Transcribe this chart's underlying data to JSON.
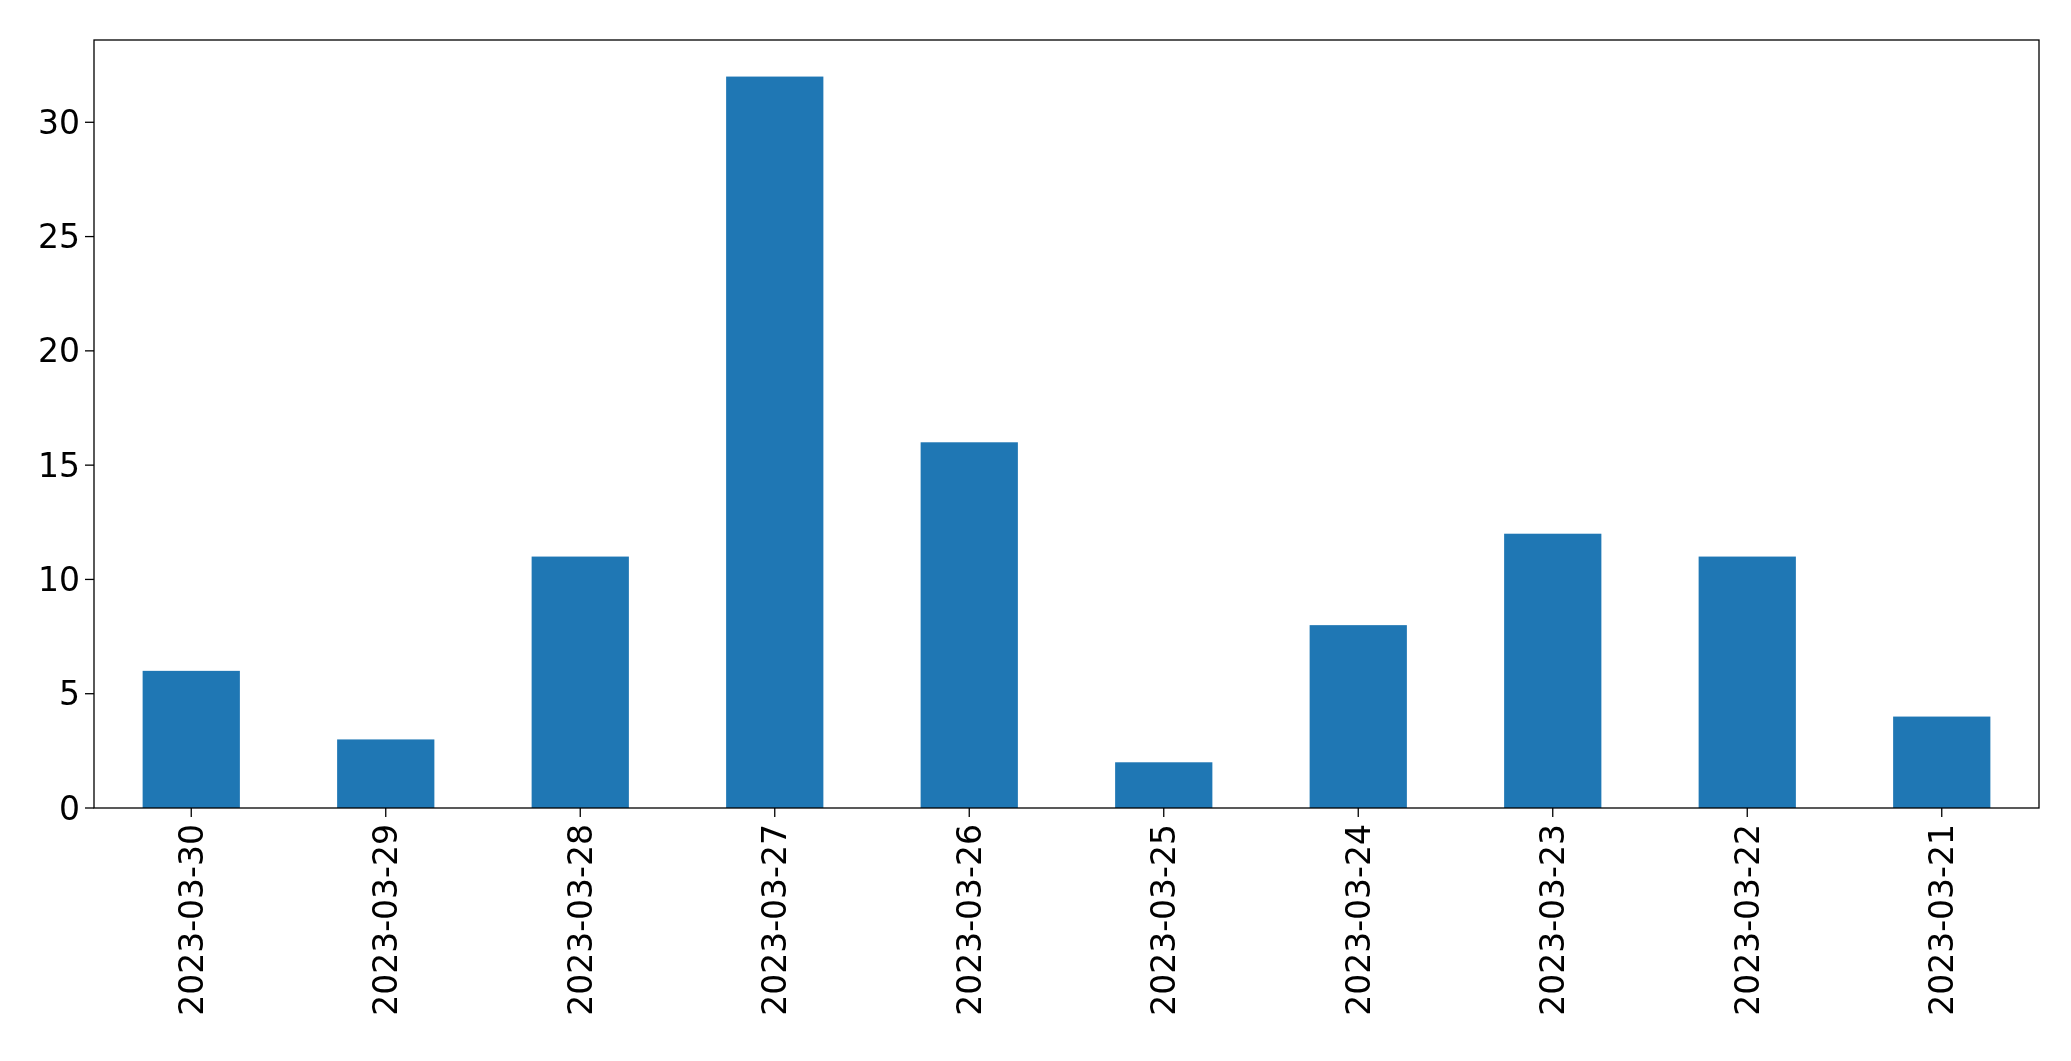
{
  "chart_data": {
    "type": "bar",
    "categories": [
      "2023-03-30",
      "2023-03-29",
      "2023-03-28",
      "2023-03-27",
      "2023-03-26",
      "2023-03-25",
      "2023-03-24",
      "2023-03-23",
      "2023-03-22",
      "2023-03-21"
    ],
    "values": [
      6,
      3,
      11,
      32,
      16,
      2,
      8,
      12,
      11,
      4
    ],
    "color": "#1f77b4",
    "ylim": [
      0,
      33.6
    ],
    "yticks": [
      0,
      5,
      10,
      15,
      20,
      25,
      30
    ]
  }
}
